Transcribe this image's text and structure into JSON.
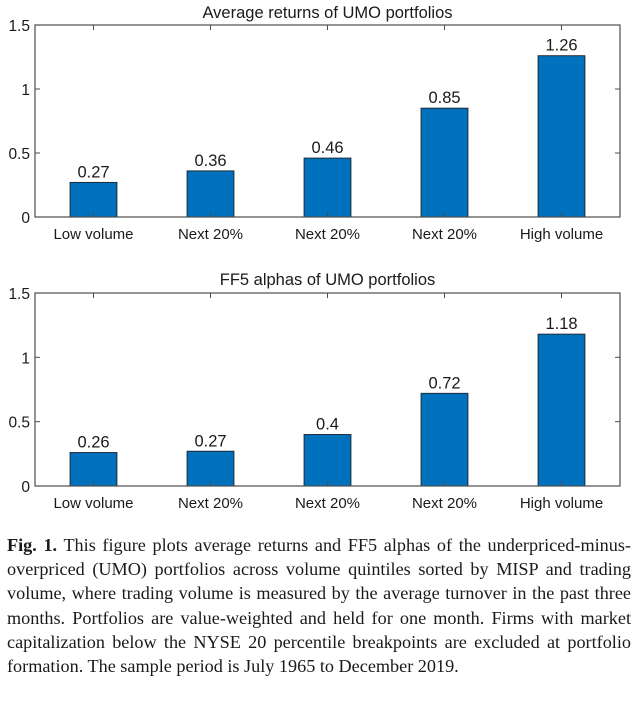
{
  "chart_data": [
    {
      "type": "bar",
      "title": "Average returns of UMO portfolios",
      "categories": [
        "Low volume",
        "Next 20%",
        "Next 20%",
        "Next 20%",
        "High volume"
      ],
      "values": [
        0.27,
        0.36,
        0.46,
        0.85,
        1.26
      ],
      "data_labels": [
        "0.27",
        "0.36",
        "0.46",
        "0.85",
        "1.26"
      ],
      "xlabel": "",
      "ylabel": "",
      "ylim": [
        0,
        1.5
      ],
      "yticks": [
        0,
        0.5,
        1,
        1.5
      ],
      "ytick_labels": [
        "0",
        "0.5",
        "1",
        "1.5"
      ],
      "grid": false,
      "bar_color": "#0072BD"
    },
    {
      "type": "bar",
      "title": "FF5 alphas of UMO portfolios",
      "categories": [
        "Low volume",
        "Next 20%",
        "Next 20%",
        "Next 20%",
        "High volume"
      ],
      "values": [
        0.26,
        0.27,
        0.4,
        0.72,
        1.18
      ],
      "data_labels": [
        "0.26",
        "0.27",
        "0.4",
        "0.72",
        "1.18"
      ],
      "xlabel": "",
      "ylabel": "",
      "ylim": [
        0,
        1.5
      ],
      "yticks": [
        0,
        0.5,
        1,
        1.5
      ],
      "ytick_labels": [
        "0",
        "0.5",
        "1",
        "1.5"
      ],
      "grid": false,
      "bar_color": "#0072BD"
    }
  ],
  "caption": {
    "label": "Fig. 1.",
    "text": "This figure plots average returns and FF5 alphas of the underpriced-minus-overpriced (UMO) portfolios across volume quintiles sorted by MISP and trading volume, where trading volume is measured by the average turnover in the past three months. Portfolios are value-weighted and held for one month. Firms with market capitalization below the NYSE 20 percentile breakpoints are excluded at portfolio formation. The sample period is July 1965 to December 2019."
  }
}
